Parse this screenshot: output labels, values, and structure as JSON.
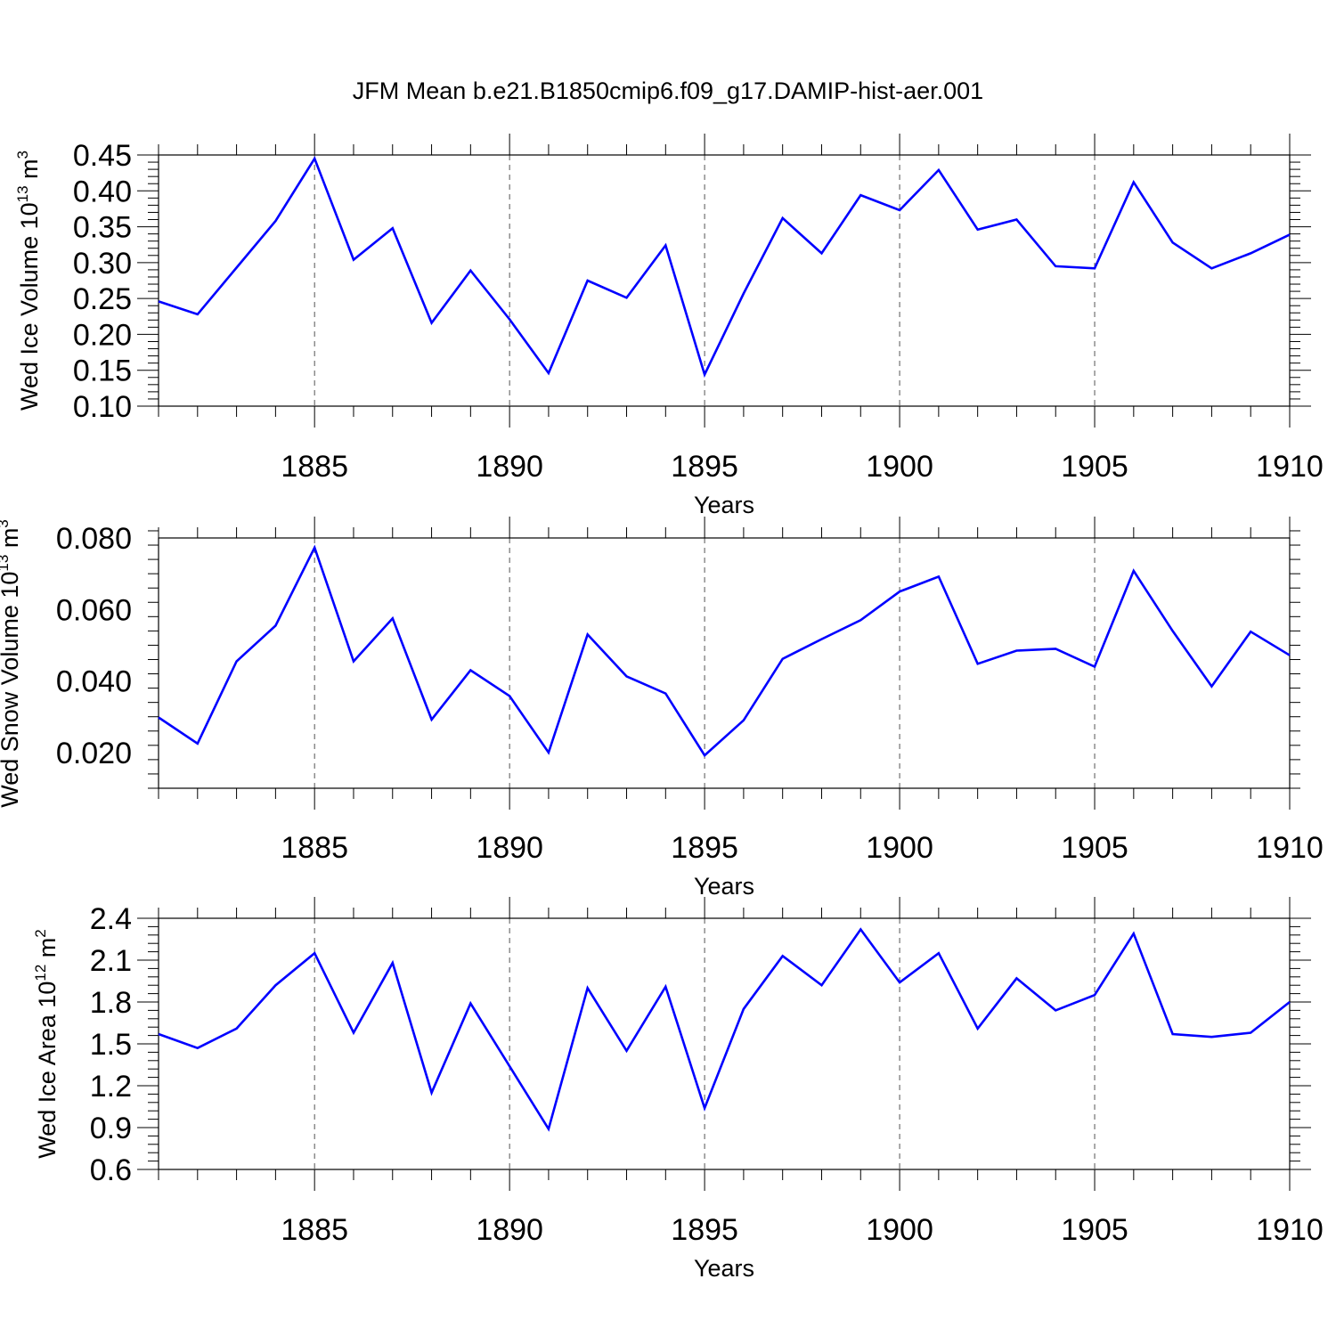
{
  "title": "JFM Mean b.e21.B1850cmip6.f09_g17.DAMIP-hist-aer.001",
  "colors": {
    "series": "#0000ff",
    "grid": "#555555"
  },
  "chart_data": [
    {
      "type": "line",
      "name": "ice-volume",
      "ylabel": "Wed Ice Volume 10",
      "ylabel_sup": "13",
      "ylabel_unit": " m",
      "ylabel_unit_sup": "3",
      "xlabel": "Years",
      "xlim": [
        1881,
        1910
      ],
      "ylim": [
        0.1,
        0.45
      ],
      "yticks": [
        0.1,
        0.15,
        0.2,
        0.25,
        0.3,
        0.35,
        0.4,
        0.45
      ],
      "ytick_labels": [
        "0.10",
        "0.15",
        "0.20",
        "0.25",
        "0.30",
        "0.35",
        "0.40",
        "0.45"
      ],
      "xticks": [
        1885,
        1890,
        1895,
        1900,
        1905,
        1910
      ],
      "xtick_labels": [
        "1885",
        "1890",
        "1895",
        "1900",
        "1905",
        "1910"
      ],
      "grid": "x-dashed",
      "x": [
        1881,
        1882,
        1883,
        1884,
        1885,
        1886,
        1887,
        1888,
        1889,
        1890,
        1891,
        1892,
        1893,
        1894,
        1895,
        1896,
        1897,
        1898,
        1899,
        1900,
        1901,
        1902,
        1903,
        1904,
        1905,
        1906,
        1907,
        1908,
        1909,
        1910
      ],
      "values": [
        0.246,
        0.228,
        0.293,
        0.358,
        0.445,
        0.304,
        0.348,
        0.216,
        0.289,
        0.221,
        0.146,
        0.275,
        0.251,
        0.324,
        0.144,
        0.257,
        0.362,
        0.313,
        0.394,
        0.373,
        0.429,
        0.346,
        0.36,
        0.295,
        0.292,
        0.412,
        0.328,
        0.292,
        0.313,
        0.339
      ]
    },
    {
      "type": "line",
      "name": "snow-volume",
      "ylabel": "Wed Snow Volume 10",
      "ylabel_sup": "13",
      "ylabel_unit": " m",
      "ylabel_unit_sup": "3",
      "xlabel": "Years",
      "xlim": [
        1881,
        1910
      ],
      "ylim": [
        0.01,
        0.08
      ],
      "yticks": [
        0.02,
        0.04,
        0.06,
        0.08
      ],
      "ytick_labels": [
        "0.020",
        "0.040",
        "0.060",
        "0.080"
      ],
      "xticks": [
        1885,
        1890,
        1895,
        1900,
        1905,
        1910
      ],
      "xtick_labels": [
        "1885",
        "1890",
        "1895",
        "1900",
        "1905",
        "1910"
      ],
      "grid": "x-dashed",
      "x": [
        1881,
        1882,
        1883,
        1884,
        1885,
        1886,
        1887,
        1888,
        1889,
        1890,
        1891,
        1892,
        1893,
        1894,
        1895,
        1896,
        1897,
        1898,
        1899,
        1900,
        1901,
        1902,
        1903,
        1904,
        1905,
        1906,
        1907,
        1908,
        1909,
        1910
      ],
      "values": [
        0.0298,
        0.0225,
        0.0455,
        0.0555,
        0.0773,
        0.0455,
        0.0575,
        0.0292,
        0.043,
        0.0358,
        0.02,
        0.053,
        0.0413,
        0.0365,
        0.0192,
        0.029,
        0.0462,
        0.0517,
        0.057,
        0.065,
        0.0692,
        0.0448,
        0.0485,
        0.049,
        0.044,
        0.0708,
        0.054,
        0.0385,
        0.0538,
        0.0472
      ]
    },
    {
      "type": "line",
      "name": "ice-area",
      "ylabel": "Wed Ice Area 10",
      "ylabel_sup": "12",
      "ylabel_unit": " m",
      "ylabel_unit_sup": "2",
      "xlabel": "Years",
      "xlim": [
        1881,
        1910
      ],
      "ylim": [
        0.6,
        2.4
      ],
      "yticks": [
        0.6,
        0.9,
        1.2,
        1.5,
        1.8,
        2.1,
        2.4
      ],
      "ytick_labels": [
        "0.6",
        "0.9",
        "1.2",
        "1.5",
        "1.8",
        "2.1",
        "2.4"
      ],
      "xticks": [
        1885,
        1890,
        1895,
        1900,
        1905,
        1910
      ],
      "xtick_labels": [
        "1885",
        "1890",
        "1895",
        "1900",
        "1905",
        "1910"
      ],
      "grid": "x-dashed",
      "x": [
        1881,
        1882,
        1883,
        1884,
        1885,
        1886,
        1887,
        1888,
        1889,
        1890,
        1891,
        1892,
        1893,
        1894,
        1895,
        1896,
        1897,
        1898,
        1899,
        1900,
        1901,
        1902,
        1903,
        1904,
        1905,
        1906,
        1907,
        1908,
        1909,
        1910
      ],
      "values": [
        1.57,
        1.47,
        1.61,
        1.92,
        2.15,
        1.58,
        2.08,
        1.15,
        1.79,
        1.34,
        0.89,
        1.9,
        1.45,
        1.91,
        1.04,
        1.75,
        2.13,
        1.92,
        2.32,
        1.94,
        2.15,
        1.61,
        1.97,
        1.74,
        1.85,
        2.29,
        1.57,
        1.55,
        1.58,
        1.8
      ]
    }
  ]
}
